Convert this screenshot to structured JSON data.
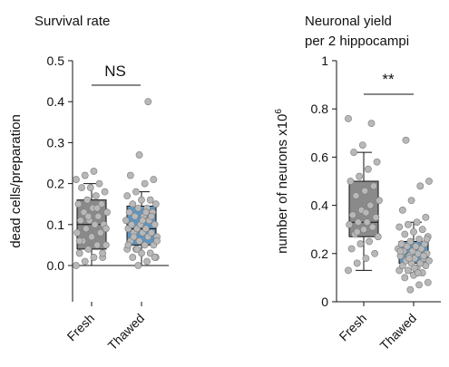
{
  "chart_data": [
    {
      "type": "box",
      "title": "Survival rate",
      "ylabel": "dead cells/preparation",
      "ylim": [
        0,
        0.5
      ],
      "yticks": [
        "0.0",
        "0.1",
        "0.2",
        "0.3",
        "0.4",
        "0.5"
      ],
      "categories": [
        "Fresh",
        "Thawed"
      ],
      "significance": "NS",
      "colors": {
        "Fresh": "#8a8a8a",
        "Thawed": "#5b97c6",
        "points": "#b8b8b8"
      },
      "boxes": [
        {
          "name": "Fresh",
          "min": 0.0,
          "q1": 0.04,
          "median": 0.1,
          "q3": 0.16,
          "max": 0.2
        },
        {
          "name": "Thawed",
          "min": 0.0,
          "q1": 0.05,
          "median": 0.09,
          "q3": 0.145,
          "max": 0.18
        }
      ],
      "points": [
        [
          0.0,
          0.01,
          0.02,
          0.02,
          0.03,
          0.04,
          0.05,
          0.05,
          0.06,
          0.07,
          0.08,
          0.08,
          0.09,
          0.1,
          0.1,
          0.11,
          0.11,
          0.12,
          0.13,
          0.13,
          0.14,
          0.15,
          0.15,
          0.16,
          0.17,
          0.18,
          0.19,
          0.19,
          0.2,
          0.21,
          0.22,
          0.23,
          0.03,
          0.06,
          0.12,
          0.14,
          0.09
        ],
        [
          0.0,
          0.01,
          0.02,
          0.02,
          0.03,
          0.03,
          0.04,
          0.04,
          0.05,
          0.05,
          0.06,
          0.06,
          0.07,
          0.07,
          0.08,
          0.08,
          0.08,
          0.09,
          0.09,
          0.09,
          0.1,
          0.1,
          0.1,
          0.11,
          0.11,
          0.12,
          0.12,
          0.13,
          0.13,
          0.14,
          0.14,
          0.15,
          0.15,
          0.16,
          0.16,
          0.17,
          0.18,
          0.2,
          0.21,
          0.22,
          0.27,
          0.4,
          0.06,
          0.07,
          0.11,
          0.12,
          0.05,
          0.04,
          0.13,
          0.02
        ]
      ]
    },
    {
      "type": "box",
      "title": "Neuronal yield per 2 hippocampi",
      "title_lines": [
        "Neuronal yield",
        "per 2 hippocampi"
      ],
      "ylabel": "number of neurons x10",
      "ylabel_sup": "6",
      "ylim": [
        0,
        1
      ],
      "yticks": [
        "0",
        "0.2",
        "0.4",
        "0.6",
        "0.8",
        "1"
      ],
      "categories": [
        "Fresh",
        "Thawed"
      ],
      "significance": "**",
      "colors": {
        "Fresh": "#8a8a8a",
        "Thawed": "#5b97c6",
        "points": "#b8b8b8"
      },
      "boxes": [
        {
          "name": "Fresh",
          "min": 0.13,
          "q1": 0.27,
          "median": 0.33,
          "q3": 0.5,
          "max": 0.62
        },
        {
          "name": "Thawed",
          "min": 0.12,
          "q1": 0.16,
          "median": 0.2,
          "q3": 0.25,
          "max": 0.33
        }
      ],
      "points": [
        [
          0.13,
          0.16,
          0.18,
          0.2,
          0.22,
          0.24,
          0.25,
          0.27,
          0.28,
          0.3,
          0.31,
          0.32,
          0.33,
          0.33,
          0.35,
          0.36,
          0.38,
          0.4,
          0.42,
          0.44,
          0.46,
          0.48,
          0.5,
          0.52,
          0.55,
          0.58,
          0.62,
          0.65,
          0.74,
          0.76,
          0.29,
          0.37
        ],
        [
          0.05,
          0.07,
          0.08,
          0.1,
          0.11,
          0.12,
          0.13,
          0.13,
          0.14,
          0.15,
          0.15,
          0.16,
          0.16,
          0.17,
          0.17,
          0.18,
          0.18,
          0.19,
          0.19,
          0.2,
          0.2,
          0.21,
          0.21,
          0.22,
          0.22,
          0.23,
          0.23,
          0.24,
          0.24,
          0.25,
          0.26,
          0.27,
          0.28,
          0.29,
          0.3,
          0.31,
          0.32,
          0.33,
          0.35,
          0.38,
          0.42,
          0.48,
          0.5,
          0.67,
          0.14,
          0.19,
          0.21,
          0.18,
          0.12,
          0.26
        ]
      ]
    }
  ]
}
